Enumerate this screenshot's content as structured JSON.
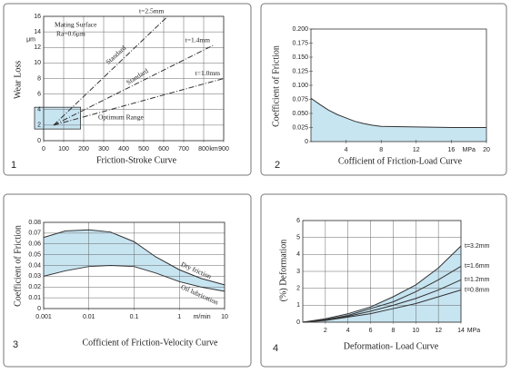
{
  "chart_data": [
    {
      "type": "line",
      "label": "1",
      "title": "Friction-Stroke Curve",
      "ylabel": "Wear Loss",
      "yunit": "μm",
      "xunit": "km",
      "xlim": [
        0,
        900
      ],
      "xticks": [
        0,
        100,
        200,
        300,
        400,
        500,
        600,
        700,
        800,
        900
      ],
      "ylim": [
        0,
        16
      ],
      "yticks": [
        0,
        2,
        4,
        6,
        8,
        10,
        12,
        14,
        16
      ],
      "grid": true,
      "fill_color": "#c7e4f1",
      "region": {
        "xlim": [
          0,
          230
        ],
        "ylim": [
          1.5,
          4.3
        ]
      },
      "annotations": [
        "Mating Surface",
        "Ra=0.6μm",
        "Standard",
        "Standard",
        "Optimum Range"
      ],
      "series": [
        {
          "name": "t=2.5mm",
          "color": "#333333",
          "x": [
            50,
            620
          ],
          "values": [
            2,
            16
          ]
        },
        {
          "name": "t=1.4mm",
          "color": "#333333",
          "x": [
            50,
            850
          ],
          "values": [
            2,
            12.3
          ]
        },
        {
          "name": "t=1.0mm",
          "color": "#333333",
          "x": [
            50,
            900
          ],
          "values": [
            2,
            8
          ]
        }
      ]
    },
    {
      "type": "line",
      "label": "2",
      "title": "Cofficient of Friction-Load Curve",
      "ylabel": "Coefficient of Friction",
      "xunit": "MPa",
      "xlim": [
        0,
        20
      ],
      "xticks": [
        4,
        8,
        12,
        16,
        20
      ],
      "ylim": [
        0,
        0.2
      ],
      "yticks": [
        0,
        0.025,
        {
          "value": 0.05,
          "label": "0.050"
        },
        0.075,
        {
          "value": 0.1,
          "label": "0.100"
        },
        0.125,
        {
          "value": 0.15,
          "label": "0.150"
        },
        0.175,
        {
          "value": 0.2,
          "label": "0.200"
        }
      ],
      "grid": false,
      "fill": "under",
      "fill_color": "#c7e4f1",
      "x": [
        0,
        1,
        2,
        3,
        4,
        5,
        6,
        7,
        8,
        12,
        16,
        20
      ],
      "series": [
        {
          "color": "#333333",
          "values": [
            0.077,
            0.066,
            0.056,
            0.048,
            0.042,
            0.036,
            0.032,
            0.029,
            0.027,
            0.026,
            0.025,
            0.025
          ]
        }
      ]
    },
    {
      "type": "line",
      "label": "3",
      "title": "Cofficient of Friction-Velocity Curve",
      "ylabel": "Coefficient of Friction",
      "xunit": "m/min",
      "xscale": "log",
      "xlim": [
        0.001,
        10
      ],
      "xticks": [
        0.001,
        0.01,
        0.1,
        1,
        10
      ],
      "ylim": [
        0,
        0.08
      ],
      "yticks": [
        0,
        0.01,
        0.02,
        0.03,
        0.04,
        0.05,
        0.06,
        0.07,
        0.08
      ],
      "grid": true,
      "fill": "between",
      "fill_color": "#c7e4f1",
      "x": [
        0.001,
        0.003,
        0.01,
        0.03,
        0.1,
        0.3,
        1,
        3,
        10
      ],
      "series": [
        {
          "name": "Dry friction",
          "color": "#333333",
          "values": [
            0.066,
            0.072,
            0.073,
            0.071,
            0.062,
            0.048,
            0.036,
            0.028,
            0.022
          ]
        },
        {
          "name": "Oil lubrication",
          "color": "#333333",
          "values": [
            0.03,
            0.035,
            0.039,
            0.04,
            0.039,
            0.033,
            0.025,
            0.02,
            0.016
          ]
        }
      ]
    },
    {
      "type": "line",
      "label": "4",
      "title": "Deformation- Load Curve",
      "ylabel": "(%) Deformation",
      "xunit": "MPa",
      "xlim": [
        0,
        14
      ],
      "xticks": [
        2,
        4,
        6,
        8,
        10,
        12,
        14
      ],
      "ylim": [
        0,
        6
      ],
      "yticks": [
        0,
        1,
        2,
        3,
        4,
        5,
        6
      ],
      "grid": true,
      "fill": "under",
      "fill_color": "#c7e4f1",
      "x": [
        0,
        2,
        4,
        6,
        8,
        10,
        12,
        14
      ],
      "series": [
        {
          "name": "t=3.2mm",
          "color": "#333333",
          "values": [
            0,
            0.2,
            0.5,
            0.9,
            1.5,
            2.2,
            3.2,
            4.5
          ]
        },
        {
          "name": "t=1.6mm",
          "color": "#333333",
          "values": [
            0,
            0.15,
            0.4,
            0.8,
            1.2,
            1.8,
            2.5,
            3.3
          ]
        },
        {
          "name": "t=1.2mm",
          "color": "#333333",
          "values": [
            0,
            0.12,
            0.35,
            0.65,
            1.0,
            1.4,
            1.9,
            2.5
          ]
        },
        {
          "name": "t=0.8mm",
          "color": "#333333",
          "values": [
            0,
            0.1,
            0.3,
            0.5,
            0.8,
            1.1,
            1.5,
            1.9
          ]
        }
      ]
    }
  ]
}
